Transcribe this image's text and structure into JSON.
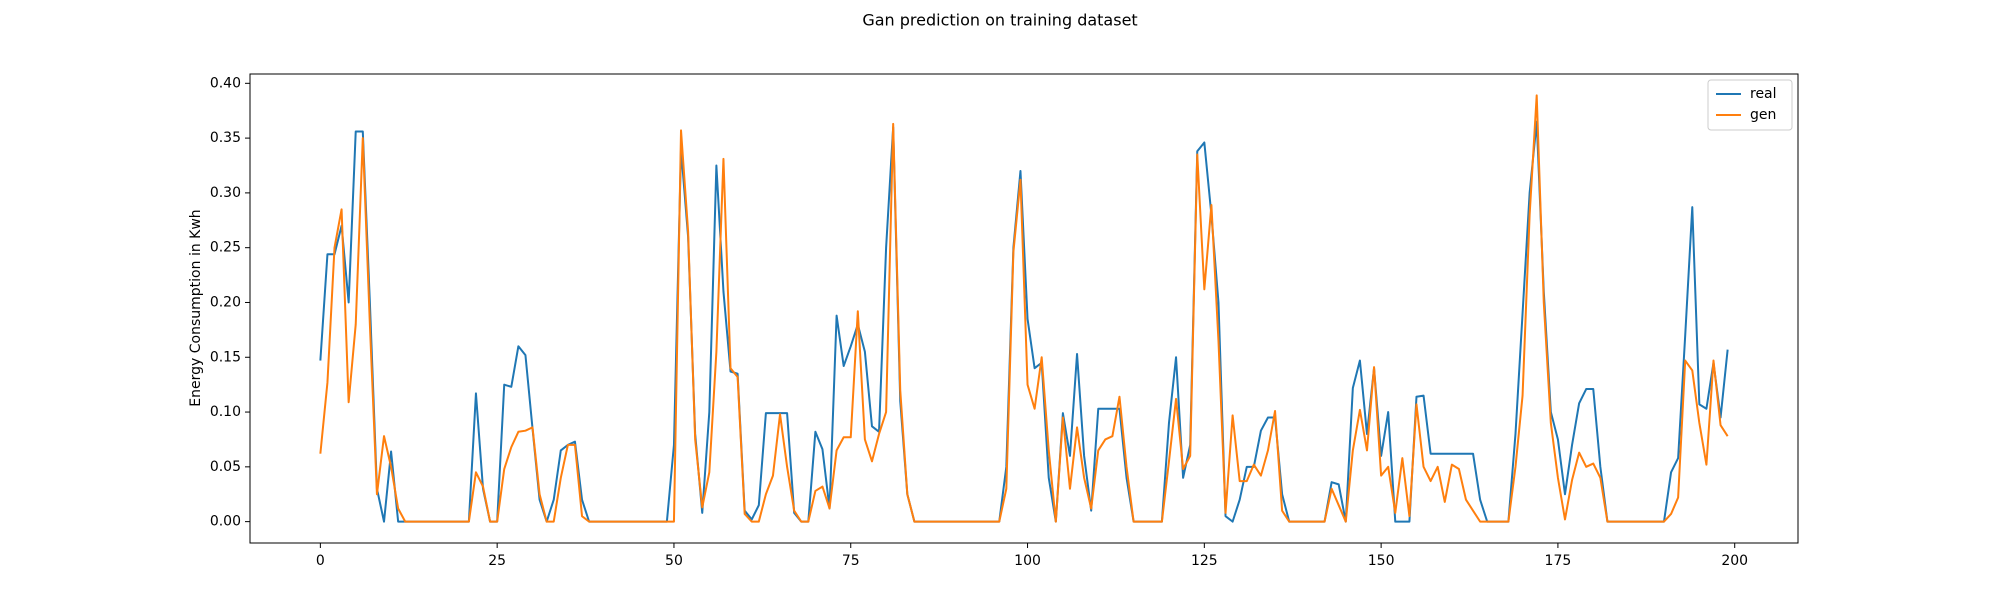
{
  "chart_data": {
    "type": "line",
    "title": "Gan prediction on training dataset",
    "y_label": "Energy Consumption in Kwh",
    "legend": "upper right",
    "grid": false,
    "xlim": [
      -9.95,
      208.95
    ],
    "xticks": [
      0,
      25,
      50,
      75,
      100,
      125,
      150,
      175,
      200
    ],
    "ylim": [
      -0.0195,
      0.4085
    ],
    "yticks": [
      {
        "value": 0,
        "label": "0.00"
      },
      {
        "value": 0.05,
        "label": "0.05"
      },
      {
        "value": 0.1,
        "label": "0.10"
      },
      {
        "value": 0.15,
        "label": "0.15"
      },
      {
        "value": 0.2,
        "label": "0.20"
      },
      {
        "value": 0.25,
        "label": "0.25"
      },
      {
        "value": 0.3,
        "label": "0.30"
      },
      {
        "value": 0.35,
        "label": "0.35"
      },
      {
        "value": 0.4,
        "label": "0.40"
      }
    ],
    "x": [
      0,
      1,
      2,
      3,
      4,
      5,
      6,
      7,
      8,
      9,
      10,
      11,
      12,
      13,
      14,
      15,
      16,
      17,
      18,
      19,
      20,
      21,
      22,
      23,
      24,
      25,
      26,
      27,
      28,
      29,
      30,
      31,
      32,
      33,
      34,
      35,
      36,
      37,
      38,
      39,
      40,
      41,
      42,
      43,
      44,
      45,
      46,
      47,
      48,
      49,
      50,
      51,
      52,
      53,
      54,
      55,
      56,
      57,
      58,
      59,
      60,
      61,
      62,
      63,
      64,
      65,
      66,
      67,
      68,
      69,
      70,
      71,
      72,
      73,
      74,
      75,
      76,
      77,
      78,
      79,
      80,
      81,
      82,
      83,
      84,
      85,
      86,
      87,
      88,
      89,
      90,
      91,
      92,
      93,
      94,
      95,
      96,
      97,
      98,
      99,
      100,
      101,
      102,
      103,
      104,
      105,
      106,
      107,
      108,
      109,
      110,
      111,
      112,
      113,
      114,
      115,
      116,
      117,
      118,
      119,
      120,
      121,
      122,
      123,
      124,
      125,
      126,
      127,
      128,
      129,
      130,
      131,
      132,
      133,
      134,
      135,
      136,
      137,
      138,
      139,
      140,
      141,
      142,
      143,
      144,
      145,
      146,
      147,
      148,
      149,
      150,
      151,
      152,
      153,
      154,
      155,
      156,
      157,
      158,
      159,
      160,
      161,
      162,
      163,
      164,
      165,
      166,
      167,
      168,
      169,
      170,
      171,
      172,
      173,
      174,
      175,
      176,
      177,
      178,
      179,
      180,
      181,
      182,
      183,
      184,
      185,
      186,
      187,
      188,
      189,
      190,
      191,
      192,
      193,
      194,
      195,
      196,
      197,
      198,
      199
    ],
    "series": [
      {
        "name": "real",
        "color": "#1f77b4",
        "values": [
          0.147,
          0.244,
          0.244,
          0.27,
          0.2,
          0.356,
          0.356,
          0.2,
          0.03,
          0,
          0.064,
          0,
          0,
          0,
          0,
          0,
          0,
          0,
          0,
          0,
          0,
          0,
          0.117,
          0.03,
          0,
          0,
          0.125,
          0.123,
          0.16,
          0.152,
          0.085,
          0.02,
          0,
          0.02,
          0.065,
          0.07,
          0.073,
          0.02,
          0,
          0,
          0,
          0,
          0,
          0,
          0,
          0,
          0,
          0,
          0,
          0,
          0.07,
          0.34,
          0.26,
          0.08,
          0.008,
          0.1,
          0.325,
          0.21,
          0.137,
          0.135,
          0.01,
          0.002,
          0.015,
          0.099,
          0.099,
          0.099,
          0.099,
          0.008,
          0,
          0,
          0.082,
          0.066,
          0.012,
          0.188,
          0.142,
          0.16,
          0.18,
          0.155,
          0.087,
          0.082,
          0.25,
          0.36,
          0.11,
          0.025,
          0,
          0,
          0,
          0,
          0,
          0,
          0,
          0,
          0,
          0,
          0,
          0,
          0,
          0.05,
          0.25,
          0.32,
          0.185,
          0.14,
          0.145,
          0.04,
          0,
          0.099,
          0.06,
          0.153,
          0.06,
          0.01,
          0.103,
          0.103,
          0.103,
          0.103,
          0.04,
          0,
          0,
          0,
          0,
          0,
          0.09,
          0.15,
          0.04,
          0.07,
          0.338,
          0.346,
          0.28,
          0.2,
          0.005,
          0,
          0.02,
          0.05,
          0.05,
          0.083,
          0.095,
          0.095,
          0.025,
          0,
          0,
          0,
          0,
          0,
          0,
          0.036,
          0.034,
          0,
          0.122,
          0.147,
          0.08,
          0.14,
          0.06,
          0.1,
          0,
          0,
          0,
          0.114,
          0.115,
          0.062,
          0.062,
          0.062,
          0.062,
          0.062,
          0.062,
          0.062,
          0.02,
          0,
          0,
          0,
          0,
          0.08,
          0.19,
          0.3,
          0.365,
          0.21,
          0.1,
          0.075,
          0.025,
          0.07,
          0.108,
          0.121,
          0.121,
          0.05,
          0,
          0,
          0,
          0,
          0,
          0,
          0,
          0,
          0,
          0.045,
          0.058,
          0.17,
          0.287,
          0.107,
          0.103,
          0.145,
          0.095,
          0.157
        ]
      },
      {
        "name": "gen",
        "color": "#ff7f0e",
        "values": [
          0.062,
          0.127,
          0.25,
          0.285,
          0.109,
          0.18,
          0.35,
          0.18,
          0.025,
          0.078,
          0.05,
          0.012,
          0,
          0,
          0,
          0,
          0,
          0,
          0,
          0,
          0,
          0,
          0.045,
          0.032,
          0,
          0,
          0.048,
          0.068,
          0.082,
          0.083,
          0.086,
          0.025,
          0,
          0,
          0.04,
          0.07,
          0.07,
          0.005,
          0,
          0,
          0,
          0,
          0,
          0,
          0,
          0,
          0,
          0,
          0,
          0,
          0,
          0.357,
          0.265,
          0.075,
          0.013,
          0.045,
          0.155,
          0.331,
          0.14,
          0.132,
          0.007,
          0,
          0,
          0.025,
          0.042,
          0.098,
          0.05,
          0.01,
          0,
          0,
          0.028,
          0.032,
          0.012,
          0.065,
          0.077,
          0.077,
          0.192,
          0.075,
          0.055,
          0.08,
          0.1,
          0.363,
          0.12,
          0.025,
          0,
          0,
          0,
          0,
          0,
          0,
          0,
          0,
          0,
          0,
          0,
          0,
          0,
          0.03,
          0.246,
          0.312,
          0.125,
          0.103,
          0.15,
          0.065,
          0,
          0.095,
          0.03,
          0.086,
          0.04,
          0.012,
          0.065,
          0.075,
          0.078,
          0.114,
          0.05,
          0,
          0,
          0,
          0,
          0,
          0.055,
          0.112,
          0.048,
          0.06,
          0.335,
          0.212,
          0.289,
          0.165,
          0.008,
          0.097,
          0.037,
          0.037,
          0.052,
          0.042,
          0.065,
          0.101,
          0.01,
          0,
          0,
          0,
          0,
          0,
          0,
          0.03,
          0.015,
          0,
          0.065,
          0.102,
          0.065,
          0.141,
          0.042,
          0.05,
          0.008,
          0.058,
          0.005,
          0.107,
          0.05,
          0.037,
          0.05,
          0.018,
          0.052,
          0.048,
          0.02,
          0.01,
          0,
          0,
          0,
          0,
          0,
          0.05,
          0.115,
          0.28,
          0.389,
          0.2,
          0.09,
          0.04,
          0.002,
          0.038,
          0.063,
          0.05,
          0.053,
          0.04,
          0,
          0,
          0,
          0,
          0,
          0,
          0,
          0,
          0,
          0.007,
          0.022,
          0.147,
          0.138,
          0.09,
          0.052,
          0.147,
          0.088,
          0.078
        ]
      }
    ]
  }
}
